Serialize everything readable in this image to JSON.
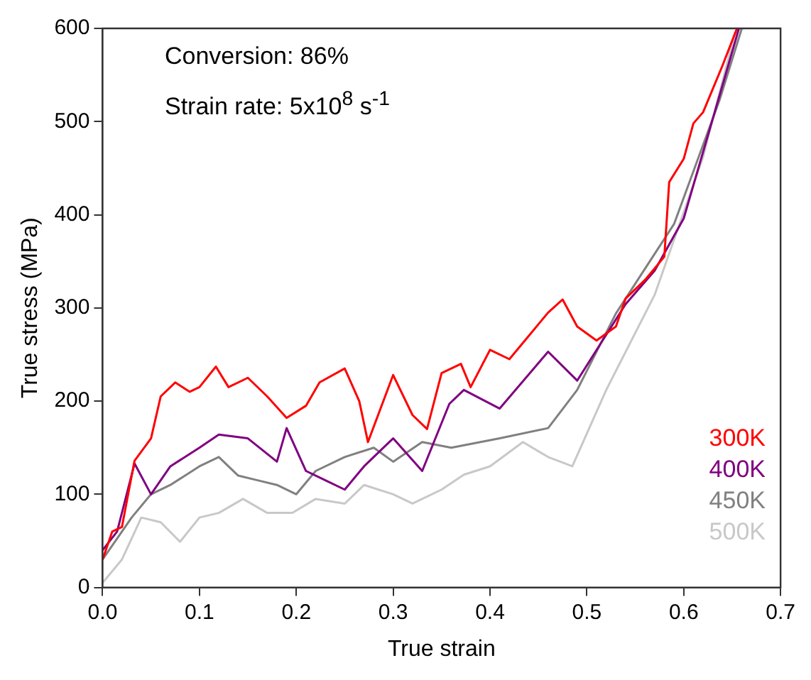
{
  "chart_data": {
    "type": "line",
    "xlabel": "True strain",
    "ylabel": "True stress (MPa)",
    "annotations": [
      "Conversion: 86%",
      "Strain rate: 5x10$^{8}$ s$^{-1}$"
    ],
    "xlim": [
      0,
      0.7
    ],
    "ylim": [
      0,
      600
    ],
    "xticks": [
      {
        "value": 0,
        "label": "0.0"
      },
      0.1,
      0.2,
      0.3,
      0.4,
      0.5,
      0.6,
      0.7
    ],
    "yticks": [
      0,
      100,
      200,
      300,
      400,
      500,
      600
    ],
    "grid": false,
    "legend": "right",
    "marker": "none",
    "line_style": "solid",
    "series": [
      {
        "name": "300K",
        "color": "#ff0000",
        "x": [
          0,
          0.01,
          0.02,
          0.033,
          0.05,
          0.06,
          0.075,
          0.09,
          0.1,
          0.117,
          0.13,
          0.15,
          0.17,
          0.19,
          0.21,
          0.224,
          0.25,
          0.265,
          0.274,
          0.3,
          0.32,
          0.335,
          0.35,
          0.37,
          0.38,
          0.4,
          0.42,
          0.44,
          0.46,
          0.475,
          0.49,
          0.51,
          0.53,
          0.54,
          0.56,
          0.58,
          0.585,
          0.6,
          0.61,
          0.62,
          0.64,
          0.655
        ],
        "values": [
          30,
          60,
          65,
          136,
          160,
          205,
          220,
          210,
          215,
          237,
          215,
          225,
          205,
          182,
          195,
          220,
          235,
          200,
          156,
          228,
          185,
          170,
          230,
          240,
          215,
          255,
          245,
          270,
          295,
          309,
          280,
          265,
          280,
          310,
          330,
          355,
          435,
          460,
          498,
          510,
          560,
          600
        ]
      },
      {
        "name": "400K",
        "color": "#800080",
        "x": [
          0,
          0.015,
          0.033,
          0.05,
          0.07,
          0.1,
          0.12,
          0.15,
          0.18,
          0.19,
          0.21,
          0.23,
          0.25,
          0.27,
          0.29,
          0.3,
          0.33,
          0.358,
          0.373,
          0.41,
          0.46,
          0.49,
          0.54,
          0.57,
          0.6,
          0.637,
          0.657
        ],
        "values": [
          40,
          60,
          133,
          100,
          130,
          150,
          164,
          160,
          135,
          171,
          125,
          115,
          105,
          130,
          150,
          160,
          125,
          197,
          212,
          192,
          253,
          222,
          304,
          340,
          396,
          528,
          600
        ]
      },
      {
        "name": "450K",
        "color": "#808080",
        "x": [
          0,
          0.03,
          0.05,
          0.07,
          0.1,
          0.12,
          0.14,
          0.16,
          0.18,
          0.2,
          0.22,
          0.25,
          0.28,
          0.3,
          0.33,
          0.36,
          0.41,
          0.46,
          0.49,
          0.53,
          0.59,
          0.637,
          0.66
        ],
        "values": [
          30,
          75,
          100,
          110,
          130,
          140,
          120,
          115,
          110,
          100,
          125,
          140,
          150,
          135,
          156,
          150,
          160,
          171,
          212,
          294,
          390,
          523,
          600
        ]
      },
      {
        "name": "500K",
        "color": "#c8c8c8",
        "x": [
          0,
          0.02,
          0.04,
          0.06,
          0.08,
          0.1,
          0.12,
          0.145,
          0.17,
          0.196,
          0.22,
          0.25,
          0.27,
          0.3,
          0.32,
          0.35,
          0.373,
          0.4,
          0.434,
          0.46,
          0.485,
          0.52,
          0.57,
          0.62,
          0.653
        ],
        "values": [
          5,
          30,
          75,
          70,
          49,
          75,
          80,
          95,
          80,
          80,
          95,
          90,
          110,
          100,
          90,
          105,
          121,
          130,
          156,
          140,
          130,
          212,
          314,
          462,
          596
        ]
      }
    ]
  }
}
